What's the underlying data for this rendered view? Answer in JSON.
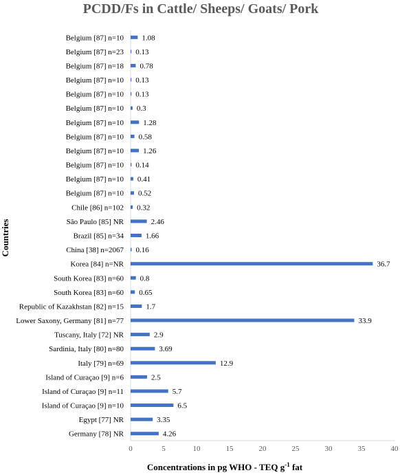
{
  "chart_data": {
    "type": "bar",
    "orientation": "horizontal",
    "title": "PCDD/Fs in Cattle/ Sheeps/ Goats/ Pork",
    "xlabel_main": "Concentrations in pg WHO - TEQ g",
    "xlabel_sup": "-1",
    "xlabel_tail": " fat",
    "ylabel": "Countries",
    "xlim": [
      0,
      40
    ],
    "xticks": [
      0,
      5,
      10,
      15,
      20,
      25,
      30,
      35,
      40
    ],
    "grid": false,
    "bar_color": "#4472C4",
    "categories": [
      "Belgium [87] n=10",
      "Belgium [87] n=23",
      "Belgium [87] n=18",
      "Belgium [87] n=10",
      "Belgium [87] n=10",
      "Belgium [87] n=10",
      "Belgium [87] n=10",
      "Belgium [87] n=10",
      "Belgium [87] n=10",
      "Belgium [87] n=10",
      "Belgium [87] n=10",
      "Belgium [87] n=10",
      "Chile [86] n=102",
      "São Paulo [85] NR",
      "Brazil [85] n=34",
      "China [38] n=2067",
      "Korea [84] n=NR",
      "South Korea [83] n=60",
      "South Korea [83] n=60",
      "Republic of Kazakhstan [82] n=15",
      "Lower Saxony, Germany [81] n=77",
      "Tuscany, Italy [72] NR",
      "Sardinia, Italy [80] n=80",
      "Italy [79] n=69",
      "Island of Curaçao [9] n=6",
      "Island of Curaçao [9] n=11",
      "Island of Curaçao [9] n=10",
      "Egypt [77] NR",
      "Germany [78] NR"
    ],
    "values": [
      1.08,
      0.13,
      0.78,
      0.13,
      0.13,
      0.3,
      1.28,
      0.58,
      1.26,
      0.14,
      0.41,
      0.52,
      0.32,
      2.46,
      1.66,
      0.16,
      36.7,
      0.8,
      0.65,
      1.7,
      33.9,
      2.9,
      3.69,
      12.9,
      2.5,
      5.7,
      6.5,
      3.35,
      4.26
    ],
    "value_labels": [
      "1.08",
      "0.13",
      "0.78",
      "0.13",
      "0.13",
      "0.3",
      "1.28",
      "0.58",
      "1.26",
      "0.14",
      "0.41",
      "0.52",
      "0.32",
      "2.46",
      "1.66",
      "0.16",
      "36.7",
      "0.8",
      "0.65",
      "1.7",
      "33.9",
      "2.9",
      "3.69",
      "12.9",
      "2.5",
      "5.7",
      "6.5",
      "3.35",
      "4.26"
    ]
  }
}
